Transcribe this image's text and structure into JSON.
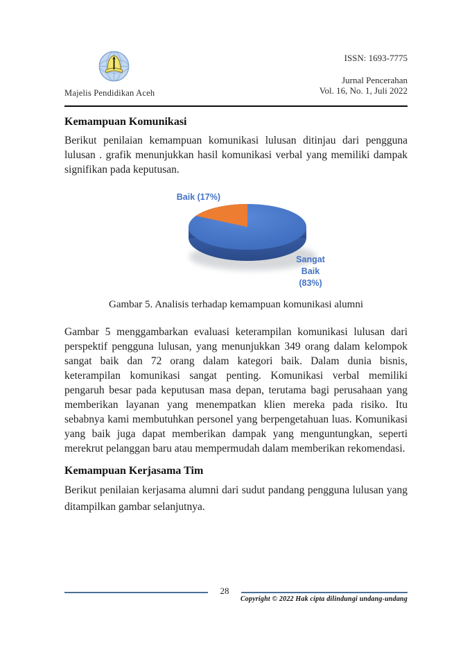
{
  "header": {
    "organization": "Majelis Pendidikan Aceh",
    "issn": "ISSN: 1693-7775",
    "journal_name": "Jurnal Pencerahan",
    "volume": "Vol. 16, No. 1, Juli 2022"
  },
  "article": {
    "section1_heading": "Kemampuan Komunikasi",
    "section1_paragraph": "Berikut penilaian kemampuan komunikasi lulusan ditinjau dari pengguna lulusan . grafik menunjukkan hasil komunikasi verbal yang memiliki dampak signifikan pada keputusan.",
    "figure_caption": "Gambar 5. Analisis terhadap kemampuan komunikasi alumni",
    "discussion_paragraph": "Gambar 5 menggambarkan evaluasi keterampilan komunikasi lulusan dari perspektif pengguna lulusan, yang menunjukkan 349 orang dalam kelompok sangat baik dan 72 orang dalam kategori baik. Dalam dunia bisnis, keterampilan komunikasi sangat penting. Komunikasi verbal memiliki pengaruh besar pada keputusan masa depan, terutama bagi perusahaan yang memberikan layanan yang menempatkan klien mereka pada risiko. Itu sebabnya kami membutuhkan personel yang berpengetahuan luas. Komunikasi yang baik juga dapat memberikan dampak yang menguntungkan, seperti merekrut pelanggan baru atau mempermudah dalam memberikan rekomendasi.",
    "section2_heading": "Kemampuan Kerjasama Tim",
    "section2_paragraph": "Berikut penilaian kerjasama alumni dari sudut pandang pengguna lulusan yang ditampilkan gambar selanjutnya."
  },
  "chart_data": {
    "type": "pie",
    "style": "3d",
    "labels": [
      "Sangat Baik",
      "Baik"
    ],
    "values": [
      83,
      17
    ],
    "unit": "%",
    "colors": [
      "#4472C4",
      "#ED7D31"
    ],
    "data_labels": [
      "Sangat Baik (83%)",
      "Baik (17%)"
    ],
    "label_color": "#4472C4",
    "legend": "none",
    "title": ""
  },
  "figure_labels": {
    "baik": "Baik (17%)",
    "sangat_baik": "Sangat\nBaik\n(83%)"
  },
  "footer": {
    "page_number": "28",
    "copyright": "Copyright © 2022 Hak cipta dilindungi undang-undang"
  }
}
